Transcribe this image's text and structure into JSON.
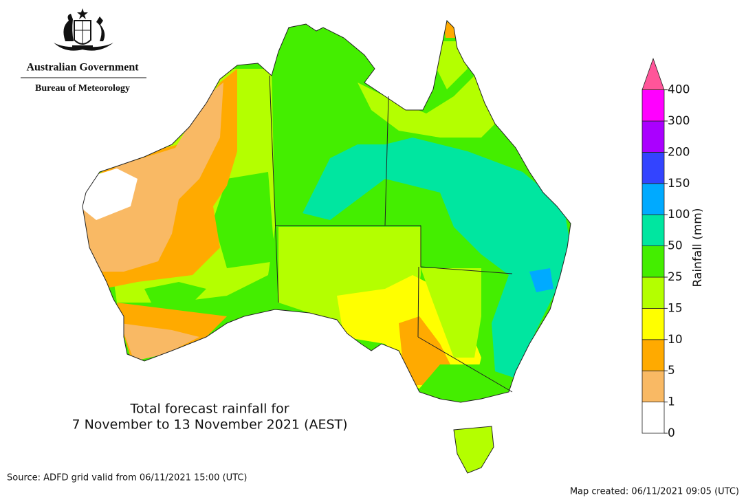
{
  "logo": {
    "government": "Australian Government",
    "agency": "Bureau of Meteorology"
  },
  "map": {
    "title_lines": [
      "Total forecast rainfall for",
      "7 November to 13 November 2021 (AEST)"
    ]
  },
  "legend": {
    "title": "Rainfall (mm)",
    "ticks": [
      0,
      1,
      5,
      10,
      15,
      25,
      50,
      100,
      150,
      200,
      300,
      400
    ],
    "colors": [
      "#ffffff",
      "#f9b964",
      "#ffaa00",
      "#ffff00",
      "#b4ff00",
      "#44ee00",
      "#00e6a0",
      "#00aaff",
      "#3344ff",
      "#aa00ff",
      "#ff00ff"
    ],
    "overflow_color": "#ff5599"
  },
  "footer": {
    "source": "Source: ADFD grid valid from 06/11/2021 15:00 (UTC)",
    "created": "Map created: 06/11/2021 09:05 (UTC)"
  }
}
